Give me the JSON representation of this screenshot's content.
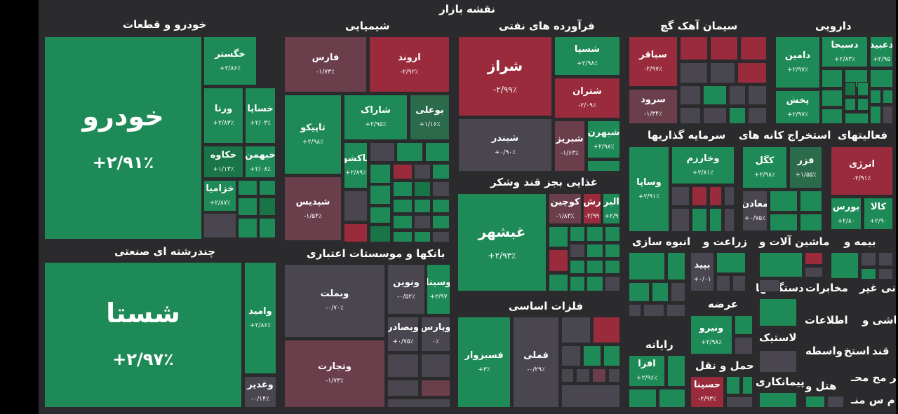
{
  "title": "نقشه بازار",
  "colors": {
    "positive": "#1e8a57",
    "negative": "#9a2b3c",
    "neutral": "#4a4650",
    "background": "#2b2b2e"
  },
  "sections": {
    "auto": "خودرو و قطعات",
    "chemical": "شیمیایی",
    "oil": "فرآورده های نفتی",
    "cement": "سیمان آهک گچ",
    "pharma": "دارویی",
    "multi": "چندرشته ای صنعتی",
    "banks": "بانکها و موسستات اعتباری",
    "food": "غذایی بجز قند وشکر",
    "invest": "سرمایه گذاریها",
    "mining": "استخراج کانه های",
    "activities": "فعالیتهای",
    "metals": "فلزات اساسی",
    "mass": "انبوه سازی",
    "agri": "زراعت و",
    "machinery": "ماشین آلات و",
    "insurance": "بیمه و",
    "supply": "عرضه",
    "nonmetal": "کانی غیر",
    "telecom": "مخابرات",
    "devices": "دستگاهها",
    "tile": "کاشی و",
    "info": "اطلاعات",
    "rubber": "لاستیک",
    "computer": "رایانه",
    "transport": "حمل و نقل",
    "intermediary": "واسطه",
    "extract": "استخ",
    "sugar": "قند",
    "contracting": "پیمانکاری",
    "hotel": "هتل و",
    "products1": "فر مح محـ",
    "products2": "م س منـ"
  },
  "tiles": {
    "khodro": {
      "name": "خودرو",
      "pct": "+۲/۹۱٪"
    },
    "khegostar": {
      "name": "خگستر",
      "pct": "+۲/۸۶٪"
    },
    "vorna": {
      "name": "ورنا",
      "pct": "+۲/۸۳٪"
    },
    "khasapa": {
      "name": "خساپا",
      "pct": "+۲/۰۳٪"
    },
    "khakave": {
      "name": "خکاوه",
      "pct": "+۱/۱۳٪"
    },
    "khbahman": {
      "name": "خبهمن",
      "pct": "+۲/۰۸٪"
    },
    "khazamia": {
      "name": "خزامیا",
      "pct": "+۲/۸۷٪"
    },
    "fars": {
      "name": "فارس",
      "pct": "-۱/۷۳٪"
    },
    "arvand": {
      "name": "اروند",
      "pct": "-۲/۹۲٪"
    },
    "tapico": {
      "name": "تاپیکو",
      "pct": "+۲/۹۸٪"
    },
    "sharak": {
      "name": "شاراک",
      "pct": "+۲/۹۵٪"
    },
    "buali": {
      "name": "بوعلی",
      "pct": "+۱/۱۶٪"
    },
    "pakshu": {
      "name": "پاکشو",
      "pct": "+۲/۸۹٪"
    },
    "shepdis": {
      "name": "شپدیس",
      "pct": "-۱/۵۴٪"
    },
    "shiraz": {
      "name": "شراز",
      "pct": "-۲/۹۹٪"
    },
    "shaspa": {
      "name": "شسپا",
      "pct": "+۲/۹۸٪"
    },
    "shetran": {
      "name": "شتران",
      "pct": "-۲/۰۹٪"
    },
    "shebandar": {
      "name": "شبندر",
      "pct": "+۰/۹۰٪"
    },
    "shabriz": {
      "name": "شبریز",
      "pct": "-۱/۶۳٪"
    },
    "shebahran": {
      "name": "شبهرن",
      "pct": "+۲/۹۸٪"
    },
    "sabagher": {
      "name": "سباقر",
      "pct": "-۲/۹۷٪"
    },
    "sarud": {
      "name": "سرود",
      "pct": "-۱/۳۴٪"
    },
    "dabid": {
      "name": "دعبید",
      "pct": "+۲/۹۵"
    },
    "dasobha": {
      "name": "دسبحا",
      "pct": "+۲/۸۳٪"
    },
    "damin": {
      "name": "دامین",
      "pct": "+۲/۹۷٪"
    },
    "pakhsh": {
      "name": "پخش",
      "pct": "+۲/۹۷٪"
    },
    "shasta": {
      "name": "شستا",
      "pct": "+۲/۹۷٪"
    },
    "vamid": {
      "name": "وامید",
      "pct": "+۲/۸۶٪"
    },
    "vaghadir": {
      "name": "وغدیر",
      "pct": "-۰/۱۴٪"
    },
    "vabemellat": {
      "name": "وبملت",
      "pct": "-۰/۷۰٪"
    },
    "vanovin": {
      "name": "ونوین",
      "pct": "-۰/۵۲٪"
    },
    "vasina": {
      "name": "وسینا",
      "pct": "+۲/۹۷"
    },
    "vabsader": {
      "name": "وبصادر",
      "pct": "+۰/۷۵٪"
    },
    "vaparis": {
      "name": "وپارس",
      "pct": "۰٪"
    },
    "vatejarat": {
      "name": "وتجارت",
      "pct": "-۱/۷۳٪"
    },
    "ghabshahr": {
      "name": "غبشهر",
      "pct": "+۲/۹۳٪"
    },
    "kouchin": {
      "name": "کوچین",
      "pct": "-۱/۸۳٪"
    },
    "rosh": {
      "name": "رش",
      "pct": "-۲/۹۹"
    },
    "alborz": {
      "name": "البر",
      "pct": "+۲/۹"
    },
    "vasapa": {
      "name": "وساپا",
      "pct": "+۲/۹۱٪"
    },
    "vakharazm": {
      "name": "وخارزم",
      "pct": "+۲/۸۱٪"
    },
    "kegol": {
      "name": "کگل",
      "pct": "+۲/۹۸٪"
    },
    "fazar": {
      "name": "فزر",
      "pct": "+۱/۵۵٪"
    },
    "maaden": {
      "name": "معادن",
      "pct": "+۰/۷۵٪"
    },
    "energy": {
      "name": "انرژی",
      "pct": "-۲/۹۱٪"
    },
    "boors": {
      "name": "بورس",
      "pct": "+۲/۸۰"
    },
    "kala": {
      "name": "کالا",
      "pct": "+۲/۹۰"
    },
    "fasabzevar": {
      "name": "فسبزوار",
      "pct": "+۳٪"
    },
    "famli": {
      "name": "فملی",
      "pct": "-۰/۲۹٪"
    },
    "bepid": {
      "name": "بپید",
      "pct": "+۰/۰۱"
    },
    "vanirou": {
      "name": "ونیرو",
      "pct": "+۲/۹۸٪"
    },
    "afra": {
      "name": "افرا",
      "pct": "+۲/۹۶٪"
    },
    "hasina": {
      "name": "حسینا",
      "pct": "-۲/۹۳٪"
    }
  }
}
